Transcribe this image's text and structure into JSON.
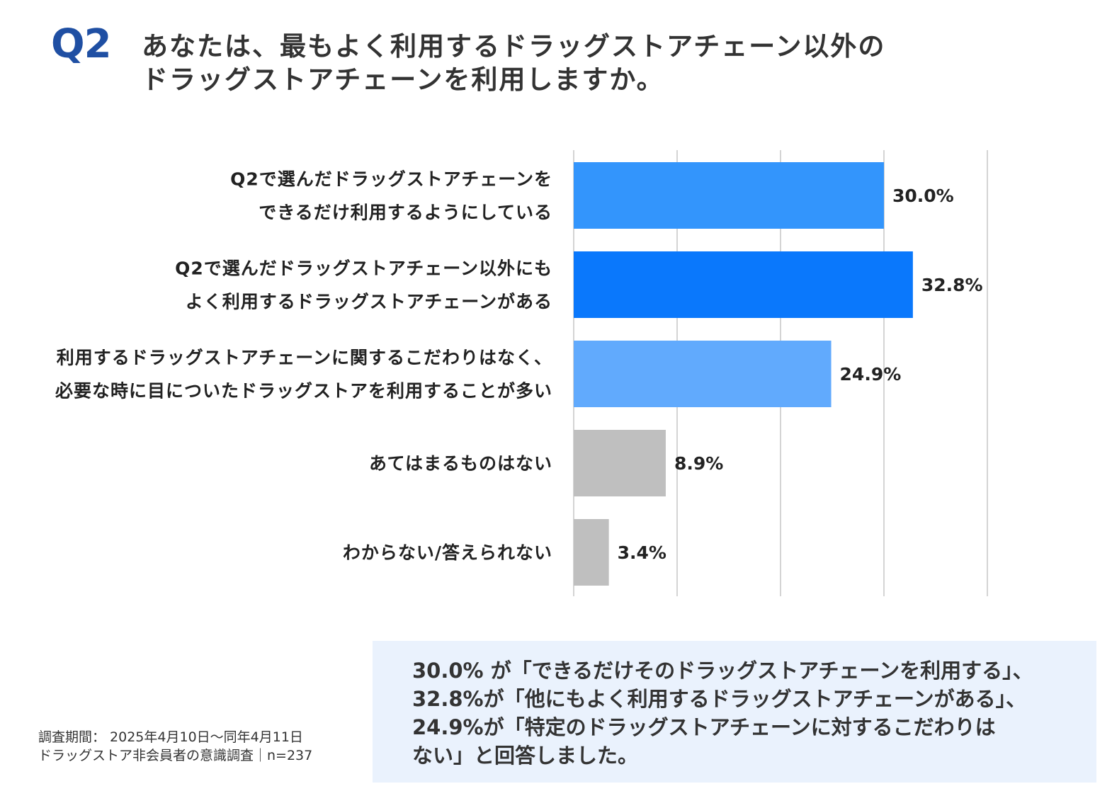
{
  "header": {
    "badge": "Q2",
    "title_lines": [
      "あなたは、最もよく利用するドラッグストアチェーン以外の",
      "ドラッグストアチェーンを利用しますか。"
    ]
  },
  "chart_data": {
    "type": "bar",
    "orientation": "horizontal",
    "categories": [
      [
        "Q2で選んだドラッグストアチェーンを",
        "できるだけ利用するようにしている"
      ],
      [
        "Q2で選んだドラッグストアチェーン以外にも",
        "よく利用するドラッグストアチェーンがある"
      ],
      [
        "利用するドラッグストアチェーンに関するこだわりはなく、",
        "必要な時に目についたドラッグストアを利用することが多い"
      ],
      [
        "あてはまるものはない"
      ],
      [
        "わからない/答えられない"
      ]
    ],
    "values": [
      30.0,
      32.8,
      24.9,
      8.9,
      3.4
    ],
    "value_labels": [
      "30.0%",
      "32.8%",
      "24.9%",
      "8.9%",
      "3.4%"
    ],
    "bar_colors": [
      "#3395fc",
      "#0a78fc",
      "#61aafd",
      "#bfbfbf",
      "#bfbfbf"
    ],
    "xlim": [
      0,
      40
    ],
    "gridlines": [
      0,
      10,
      20,
      30,
      40
    ],
    "grid": true,
    "legend": "none"
  },
  "footer": {
    "note_lines": [
      "調査期間： 2025年4月10日～同年4月11日",
      "ドラッグストア非会員者の意識調査｜n=237"
    ],
    "summary_lines": [
      "30.0% が「できるだけそのドラッグストアチェーンを利用する」、",
      "32.8%が「他にもよく利用するドラッグストアチェーンがある」、",
      "24.9%が「特定のドラッグストアチェーンに対するこだわりは",
      "ない」と回答しました。"
    ]
  },
  "colors": {
    "badge": "#1f4fa3",
    "summary_bg": "#eaf2fd",
    "gridline": "#d4d4d4"
  }
}
